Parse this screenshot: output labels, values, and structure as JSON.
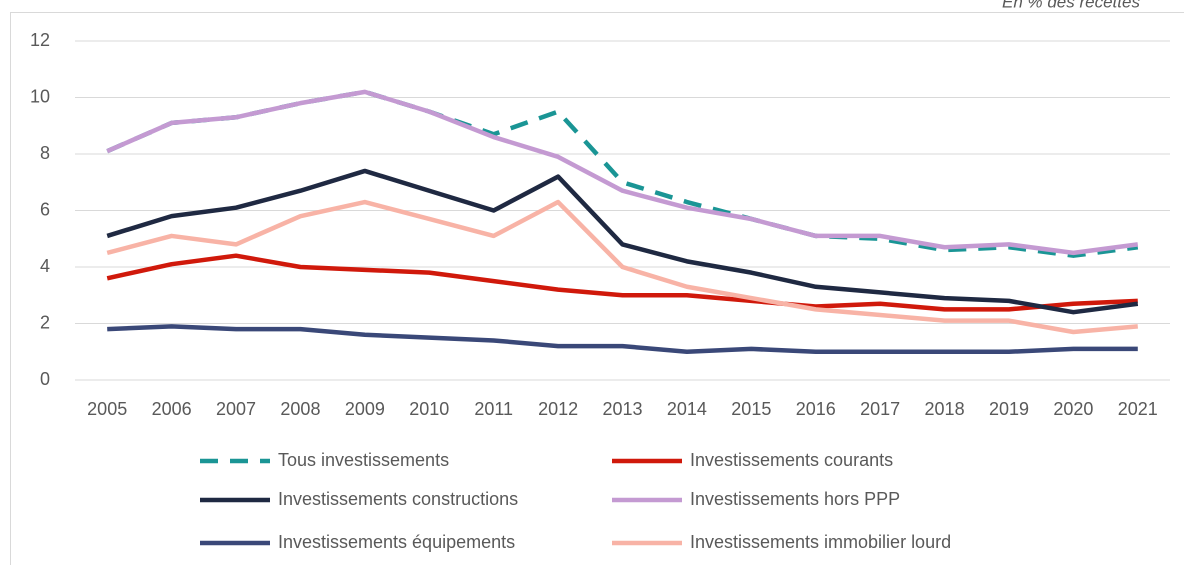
{
  "chart_data": {
    "type": "line",
    "annotation": "En % des recettes",
    "categories": [
      "2005",
      "2006",
      "2007",
      "2008",
      "2009",
      "2010",
      "2011",
      "2012",
      "2013",
      "2014",
      "2015",
      "2016",
      "2017",
      "2018",
      "2019",
      "2020",
      "2021"
    ],
    "ylim": [
      0,
      12
    ],
    "yticks": [
      0,
      2,
      4,
      6,
      8,
      10,
      12
    ],
    "grid": true,
    "legend": "bottom",
    "series": [
      {
        "name": "Tous investissements",
        "color": "#1a9595",
        "dashed": true,
        "values": [
          8.1,
          9.1,
          9.3,
          9.8,
          10.2,
          9.5,
          8.7,
          9.5,
          7.0,
          6.3,
          5.7,
          5.1,
          5.0,
          4.6,
          4.7,
          4.4,
          4.7
        ]
      },
      {
        "name": "Investissements courants",
        "color": "#d0190b",
        "values": [
          3.6,
          4.1,
          4.4,
          4.0,
          3.9,
          3.8,
          3.5,
          3.2,
          3.0,
          3.0,
          2.8,
          2.6,
          2.7,
          2.5,
          2.5,
          2.7,
          2.8
        ]
      },
      {
        "name": "Investissements constructions",
        "color": "#1f2942",
        "values": [
          5.1,
          5.8,
          6.1,
          6.7,
          7.4,
          6.7,
          6.0,
          7.2,
          4.8,
          4.2,
          3.8,
          3.3,
          3.1,
          2.9,
          2.8,
          2.4,
          2.7
        ]
      },
      {
        "name": "Investissements hors PPP",
        "color": "#c49ad2",
        "values": [
          8.1,
          9.1,
          9.3,
          9.8,
          10.2,
          9.5,
          8.6,
          7.9,
          6.7,
          6.1,
          5.7,
          5.1,
          5.1,
          4.7,
          4.8,
          4.5,
          4.8
        ]
      },
      {
        "name": "Investissements équipements",
        "color": "#3a4878",
        "values": [
          1.8,
          1.9,
          1.8,
          1.8,
          1.6,
          1.5,
          1.4,
          1.2,
          1.2,
          1.0,
          1.1,
          1.0,
          1.0,
          1.0,
          1.0,
          1.1,
          1.1
        ]
      },
      {
        "name": "Investissements immobilier lourd",
        "color": "#f8b3a6",
        "values": [
          4.5,
          5.1,
          4.8,
          5.8,
          6.3,
          5.7,
          5.1,
          6.3,
          4.0,
          3.3,
          2.9,
          2.5,
          2.3,
          2.1,
          2.1,
          1.7,
          1.9
        ]
      }
    ]
  }
}
